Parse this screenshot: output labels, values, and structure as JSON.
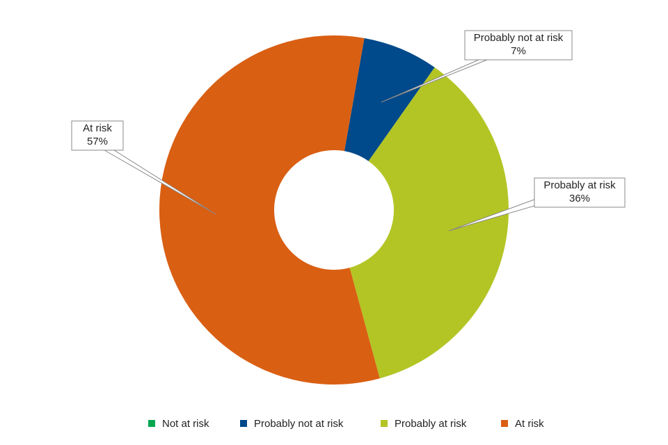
{
  "chart_data": {
    "type": "donut",
    "categories": [
      "Not at risk",
      "Probably not at risk",
      "Probably at risk",
      "At risk"
    ],
    "values": [
      0,
      7,
      36,
      57
    ],
    "value_labels": [
      null,
      "7%",
      "36%",
      "57%"
    ],
    "colors": [
      "#00a651",
      "#00498a",
      "#b3c525",
      "#d95f13"
    ],
    "legend": "bottom"
  }
}
